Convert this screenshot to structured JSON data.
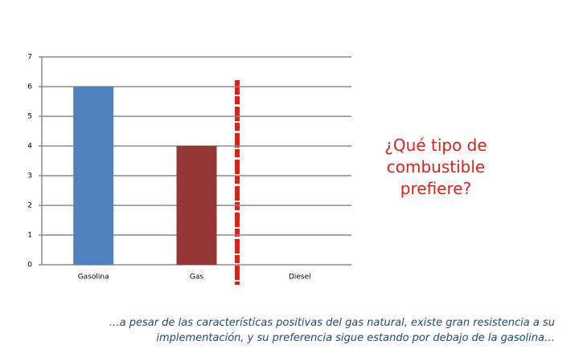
{
  "chart_data": {
    "type": "bar",
    "categories": [
      "Gasolina",
      "Gas",
      "Diesel"
    ],
    "values": [
      6,
      4,
      0
    ],
    "colors": [
      "#4f81bd",
      "#953735",
      "#9bbb59"
    ],
    "ylim": [
      0,
      7
    ],
    "yticks": [
      0,
      1,
      2,
      3,
      4,
      5,
      6,
      7
    ],
    "grid": true,
    "annotation": "¿Qué tipo de combustible prefiere?",
    "caption": "…a pesar de las características positivas del gas natural, existe gran resistencia a su implementación, y su preferencia sigue estando por debajo de la gasolina…"
  }
}
